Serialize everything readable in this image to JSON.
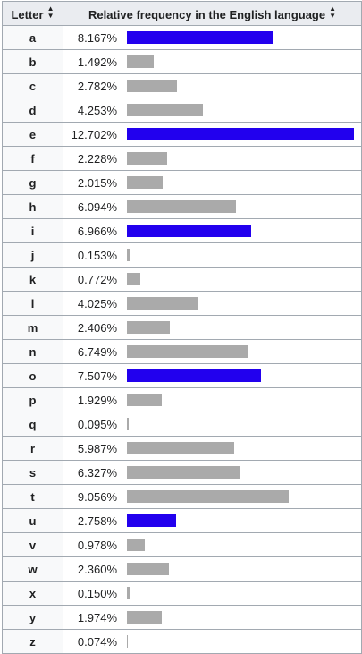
{
  "table": {
    "headers": {
      "letter": "Letter",
      "frequency": "Relative frequency in the English language"
    }
  },
  "colors": {
    "vowel": "#2200ee",
    "consonant": "#aaaaaa"
  },
  "chart_data": {
    "type": "bar",
    "title": "",
    "xlabel": "Letter",
    "ylabel": "Relative frequency in the English language",
    "xlim": [
      0,
      12.702
    ],
    "orientation": "horizontal",
    "rows": [
      {
        "letter": "a",
        "value": 8.167,
        "label": "8.167%",
        "vowel": true
      },
      {
        "letter": "b",
        "value": 1.492,
        "label": "1.492%",
        "vowel": false
      },
      {
        "letter": "c",
        "value": 2.782,
        "label": "2.782%",
        "vowel": false
      },
      {
        "letter": "d",
        "value": 4.253,
        "label": "4.253%",
        "vowel": false
      },
      {
        "letter": "e",
        "value": 12.702,
        "label": "12.702%",
        "vowel": true
      },
      {
        "letter": "f",
        "value": 2.228,
        "label": "2.228%",
        "vowel": false
      },
      {
        "letter": "g",
        "value": 2.015,
        "label": "2.015%",
        "vowel": false
      },
      {
        "letter": "h",
        "value": 6.094,
        "label": "6.094%",
        "vowel": false
      },
      {
        "letter": "i",
        "value": 6.966,
        "label": "6.966%",
        "vowel": true
      },
      {
        "letter": "j",
        "value": 0.153,
        "label": "0.153%",
        "vowel": false
      },
      {
        "letter": "k",
        "value": 0.772,
        "label": "0.772%",
        "vowel": false
      },
      {
        "letter": "l",
        "value": 4.025,
        "label": "4.025%",
        "vowel": false
      },
      {
        "letter": "m",
        "value": 2.406,
        "label": "2.406%",
        "vowel": false
      },
      {
        "letter": "n",
        "value": 6.749,
        "label": "6.749%",
        "vowel": false
      },
      {
        "letter": "o",
        "value": 7.507,
        "label": "7.507%",
        "vowel": true
      },
      {
        "letter": "p",
        "value": 1.929,
        "label": "1.929%",
        "vowel": false
      },
      {
        "letter": "q",
        "value": 0.095,
        "label": "0.095%",
        "vowel": false
      },
      {
        "letter": "r",
        "value": 5.987,
        "label": "5.987%",
        "vowel": false
      },
      {
        "letter": "s",
        "value": 6.327,
        "label": "6.327%",
        "vowel": false
      },
      {
        "letter": "t",
        "value": 9.056,
        "label": "9.056%",
        "vowel": false
      },
      {
        "letter": "u",
        "value": 2.758,
        "label": "2.758%",
        "vowel": true
      },
      {
        "letter": "v",
        "value": 0.978,
        "label": "0.978%",
        "vowel": false
      },
      {
        "letter": "w",
        "value": 2.36,
        "label": "2.360%",
        "vowel": false
      },
      {
        "letter": "x",
        "value": 0.15,
        "label": "0.150%",
        "vowel": false
      },
      {
        "letter": "y",
        "value": 1.974,
        "label": "1.974%",
        "vowel": false
      },
      {
        "letter": "z",
        "value": 0.074,
        "label": "0.074%",
        "vowel": false
      }
    ]
  }
}
